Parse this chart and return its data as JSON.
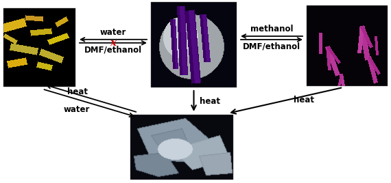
{
  "fig_width": 5.7,
  "fig_height": 2.68,
  "dpi": 100,
  "background": "#ffffff",
  "img_tl": [
    5,
    12,
    105,
    115
  ],
  "img_tc": [
    220,
    3,
    125,
    125
  ],
  "img_tr": [
    447,
    8,
    118,
    118
  ],
  "img_bc": [
    190,
    168,
    150,
    95
  ],
  "font_size": 8.5,
  "arrow_color": "#000000",
  "x_color": "#cc0000"
}
